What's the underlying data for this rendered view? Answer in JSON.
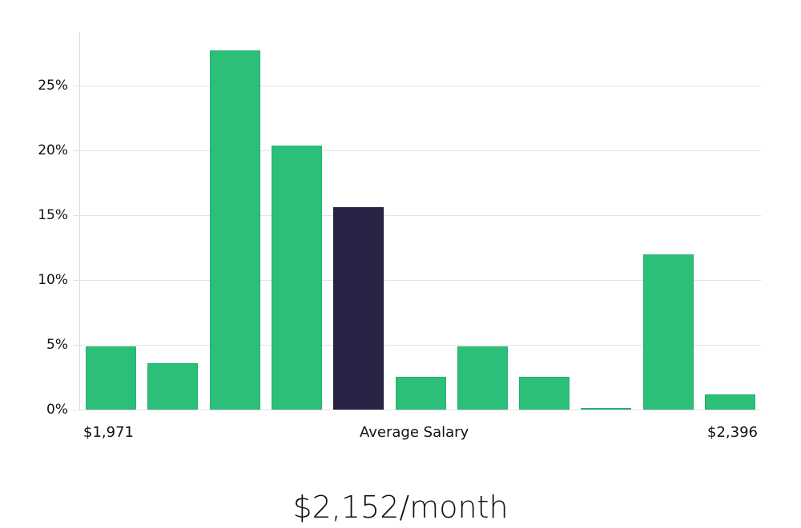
{
  "chart_data": {
    "type": "bar",
    "title": "",
    "xlabel": "Average Salary",
    "ylabel": "",
    "categories": [
      "1",
      "2",
      "3",
      "4",
      "5",
      "6",
      "7",
      "8",
      "9",
      "10",
      "11"
    ],
    "values": [
      4.9,
      3.6,
      27.7,
      20.4,
      15.6,
      2.5,
      4.9,
      2.5,
      0.1,
      12.0,
      1.2
    ],
    "highlight_index": 4,
    "ylim": [
      0,
      29
    ],
    "yticks": [
      "0%",
      "5%",
      "10%",
      "15%",
      "20%",
      "25%"
    ],
    "x_range_labels": {
      "min": "$1,971",
      "max": "$2,396"
    },
    "grid": true,
    "colors": {
      "bar": "#2bbf79",
      "highlight": "#272446",
      "grid": "#e2e2e2"
    }
  },
  "labels": {
    "x_min": "$1,971",
    "x_center": "Average Salary",
    "x_max": "$2,396",
    "footer": "$2,152/month"
  }
}
